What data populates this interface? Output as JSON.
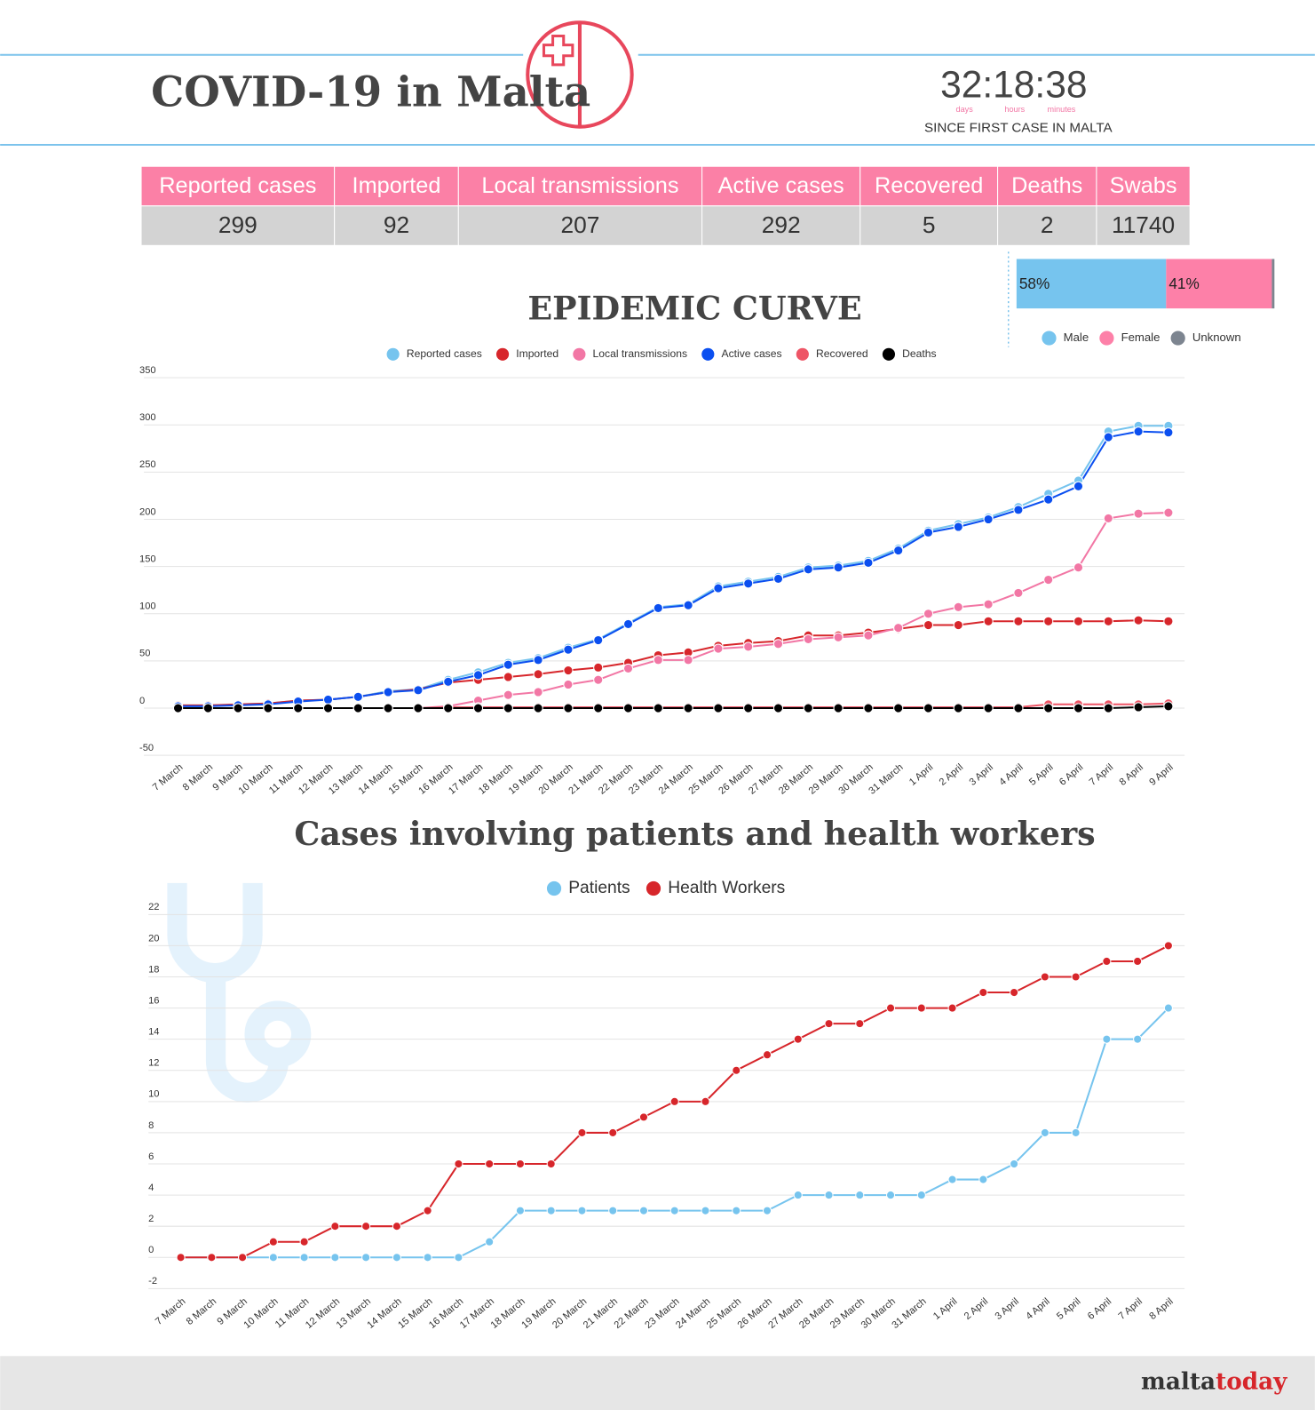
{
  "header": {
    "title": "COVID-19 in Malta",
    "timer": "32:18:38",
    "timer_units": [
      "days",
      "hours",
      "minutes"
    ],
    "timer_caption": "SINCE FIRST CASE IN MALTA"
  },
  "stats": {
    "headers": [
      "Reported cases",
      "Imported",
      "Local transmissions",
      "Active cases",
      "Recovered",
      "Deaths",
      "Swabs"
    ],
    "values": [
      299,
      92,
      207,
      292,
      5,
      2,
      11740
    ]
  },
  "chart_data": [
    {
      "type": "stacked_bar",
      "xlim": [
        0,
        100
      ],
      "series": [
        {
          "name": "Male",
          "color": "#76c4ee",
          "values": [
            58
          ],
          "value_labels": [
            "58%"
          ]
        },
        {
          "name": "Female",
          "color": "#fd80a8",
          "values": [
            41
          ],
          "value_labels": [
            "41%"
          ]
        },
        {
          "name": "Unknown",
          "color": "#7d8590",
          "values": [
            1
          ]
        }
      ]
    },
    {
      "type": "line",
      "title": "EPIDEMIC CURVE",
      "grid": true,
      "ylim": [
        -50,
        350
      ],
      "yticks": [
        -50,
        0,
        50,
        100,
        150,
        200,
        250,
        300,
        350
      ],
      "categories": [
        "7 March",
        "8 March",
        "9 March",
        "10 March",
        "11 March",
        "12 March",
        "13 March",
        "14 March",
        "15 March",
        "16 March",
        "17 March",
        "18 March",
        "19 March",
        "20 March",
        "21 March",
        "22 March",
        "23 March",
        "24 March",
        "25 March",
        "26 March",
        "27 March",
        "28 March",
        "29 March",
        "30 March",
        "31 March",
        "1 April",
        "2 April",
        "3 April",
        "4 April",
        "5 April",
        "6 April",
        "7 April",
        "8 April",
        "9 April"
      ],
      "series": [
        {
          "name": "Reported cases",
          "color": "#76c4ee",
          "values": [
            3,
            3,
            4,
            5,
            8,
            9,
            12,
            18,
            20,
            30,
            38,
            48,
            53,
            64,
            73,
            90,
            107,
            110,
            129,
            134,
            139,
            149,
            151,
            156,
            169,
            188,
            195,
            202,
            213,
            227,
            241,
            293,
            299,
            299
          ]
        },
        {
          "name": "Imported",
          "color": "#d7262b",
          "values": [
            3,
            3,
            4,
            5,
            8,
            9,
            12,
            17,
            20,
            27,
            30,
            33,
            36,
            40,
            43,
            48,
            56,
            59,
            66,
            69,
            71,
            77,
            77,
            80,
            84,
            88,
            88,
            92,
            92,
            92,
            92,
            92,
            93,
            92
          ]
        },
        {
          "name": "Local transmissions",
          "color": "#f277a5",
          "values": [
            0,
            0,
            0,
            0,
            0,
            0,
            0,
            0,
            0,
            2,
            8,
            14,
            17,
            25,
            30,
            42,
            51,
            51,
            63,
            65,
            68,
            73,
            75,
            77,
            85,
            100,
            107,
            110,
            122,
            136,
            149,
            201,
            206,
            207
          ]
        },
        {
          "name": "Active cases",
          "color": "#0b4ff0",
          "values": [
            2,
            2,
            3,
            4,
            7,
            9,
            12,
            17,
            19,
            28,
            35,
            46,
            51,
            62,
            72,
            89,
            106,
            109,
            127,
            132,
            137,
            147,
            149,
            154,
            167,
            186,
            192,
            200,
            210,
            221,
            235,
            287,
            293,
            292
          ]
        },
        {
          "name": "Recovered",
          "color": "#ee5566",
          "values": [
            0,
            0,
            0,
            0,
            0,
            0,
            0,
            0,
            0,
            1,
            1,
            1,
            1,
            1,
            1,
            1,
            1,
            1,
            1,
            1,
            1,
            1,
            1,
            1,
            1,
            1,
            1,
            1,
            1,
            4,
            4,
            4,
            4,
            5
          ]
        },
        {
          "name": "Deaths",
          "color": "#000000",
          "values": [
            0,
            0,
            0,
            0,
            0,
            0,
            0,
            0,
            0,
            0,
            0,
            0,
            0,
            0,
            0,
            0,
            0,
            0,
            0,
            0,
            0,
            0,
            0,
            0,
            0,
            0,
            0,
            0,
            0,
            0,
            0,
            0,
            1,
            2
          ]
        }
      ]
    },
    {
      "type": "line",
      "title": "Cases involving patients and health workers",
      "grid": true,
      "ylim": [
        -2,
        22
      ],
      "yticks": [
        -2,
        0,
        2,
        4,
        6,
        8,
        10,
        12,
        14,
        16,
        18,
        20,
        22
      ],
      "categories": [
        "7 March",
        "8 March",
        "9 March",
        "10 March",
        "11 March",
        "12 March",
        "13 March",
        "14 March",
        "15 March",
        "16 March",
        "17 March",
        "18 March",
        "19 March",
        "20 March",
        "21 March",
        "22 March",
        "23 March",
        "24 March",
        "25 March",
        "26 March",
        "27 March",
        "28 March",
        "29 March",
        "30 March",
        "31 March",
        "1 April",
        "2 April",
        "3 April",
        "4 April",
        "5 April",
        "6 April",
        "7 April",
        "8 April"
      ],
      "series": [
        {
          "name": "Patients",
          "color": "#76c4ee",
          "values": [
            0,
            0,
            0,
            0,
            0,
            0,
            0,
            0,
            0,
            0,
            1,
            3,
            3,
            3,
            3,
            3,
            3,
            3,
            3,
            3,
            4,
            4,
            4,
            4,
            4,
            5,
            5,
            6,
            8,
            8,
            14,
            14,
            16
          ]
        },
        {
          "name": "Health Workers",
          "color": "#d7262b",
          "values": [
            0,
            0,
            0,
            1,
            1,
            2,
            2,
            2,
            3,
            6,
            6,
            6,
            6,
            8,
            8,
            9,
            10,
            10,
            12,
            13,
            14,
            15,
            15,
            16,
            16,
            16,
            17,
            17,
            18,
            18,
            19,
            19,
            20
          ]
        }
      ]
    }
  ],
  "footer": {
    "logo": [
      "malta",
      "today"
    ]
  }
}
